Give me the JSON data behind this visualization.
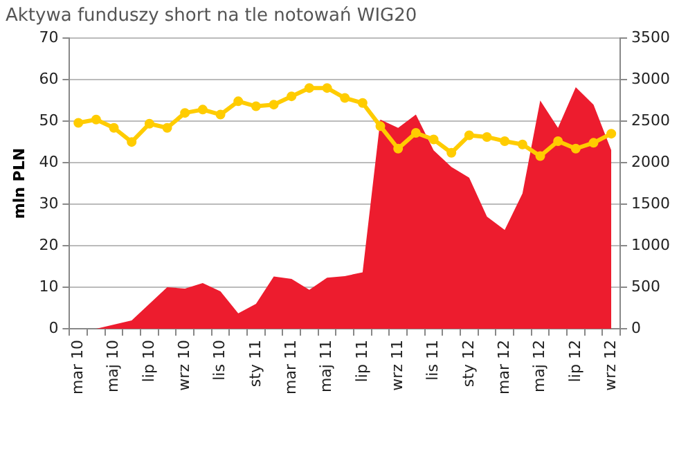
{
  "chart_data": {
    "type": "area",
    "title": "Aktywa funduszy short na tle notowań WIG20",
    "ylabel": "mln PLN",
    "categories": [
      "mar 10",
      null,
      "maj 10",
      null,
      "lip 10",
      null,
      "wrz 10",
      null,
      "lis 10",
      null,
      "sty 11",
      null,
      "mar 11",
      null,
      "maj 11",
      null,
      "lip 11",
      null,
      "wrz 11",
      null,
      "lis 11",
      null,
      "sty 12",
      null,
      "mar 12",
      null,
      "maj 12",
      null,
      "lip 12",
      null,
      "wrz 12"
    ],
    "series": [
      {
        "color": "#ed1c2e",
        "values": [
          0,
          0,
          1,
          2,
          6,
          10,
          9.7,
          11,
          9,
          3.7,
          6,
          12.6,
          12,
          9.4,
          12.3,
          12.7,
          13.6,
          50.4,
          48.4,
          51.6,
          43,
          39,
          36.4,
          27,
          23.8,
          32.6,
          55,
          48.4,
          58.2,
          54,
          43
        ]
      },
      {
        "type": "line",
        "axis": "y2",
        "color": "#ffcc00",
        "marker": "circle",
        "values": [
          2480,
          2520,
          2420,
          2250,
          2470,
          2420,
          2600,
          2640,
          2580,
          2740,
          2680,
          2700,
          2800,
          2900,
          2900,
          2780,
          2720,
          2440,
          2170,
          2360,
          2280,
          2120,
          2330,
          2310,
          2260,
          2220,
          2080,
          2260,
          2170,
          2240,
          2350
        ]
      }
    ],
    "ylim": [
      0,
      70
    ],
    "yticks": [
      0,
      10,
      20,
      30,
      40,
      50,
      60,
      70
    ],
    "y2lim": [
      0,
      3500
    ],
    "y2ticks": [
      0,
      500,
      1000,
      1500,
      2000,
      2500,
      3000,
      3500
    ],
    "grid": "y",
    "legend": false
  }
}
